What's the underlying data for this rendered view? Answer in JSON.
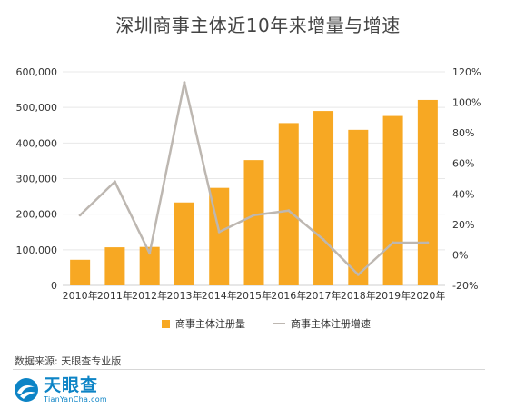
{
  "title": "深圳商事主体近10年来增量与增速",
  "source_text": "数据来源: 天眼查专业版",
  "logo": {
    "main": "天眼查",
    "sub": "TianYanCha.com"
  },
  "colors": {
    "bar": "#F7A823",
    "line": "#BDB7B1",
    "grid": "#E8E8E8",
    "axis_text": "#333333",
    "logo": "#0D84C6"
  },
  "chart_data": {
    "type": "bar",
    "title": "深圳商事主体近10年来增量与增速",
    "categories": [
      "2010年",
      "2011年",
      "2012年",
      "2013年",
      "2014年",
      "2015年",
      "2016年",
      "2017年",
      "2018年",
      "2019年",
      "2020年"
    ],
    "series": [
      {
        "name": "商事主体注册量",
        "type": "bar",
        "axis": "left",
        "values": [
          72000,
          107000,
          108000,
          233000,
          274000,
          352000,
          456000,
          490000,
          437000,
          476000,
          521000
        ]
      },
      {
        "name": "商事主体注册增速",
        "type": "line",
        "axis": "right",
        "values": [
          26,
          48,
          1,
          113,
          15,
          26,
          29,
          10,
          -13,
          8,
          8
        ]
      }
    ],
    "y_left": {
      "min": 0,
      "max": 600000,
      "step": 100000,
      "tick_labels": [
        "0",
        "100,000",
        "200,000",
        "300,000",
        "400,000",
        "500,000",
        "600,000"
      ]
    },
    "y_right": {
      "min": -20,
      "max": 120,
      "step": 20,
      "tick_labels": [
        "-20%",
        "0%",
        "20%",
        "40%",
        "60%",
        "80%",
        "100%",
        "120%"
      ]
    },
    "grid": true,
    "legend_position": "bottom"
  }
}
